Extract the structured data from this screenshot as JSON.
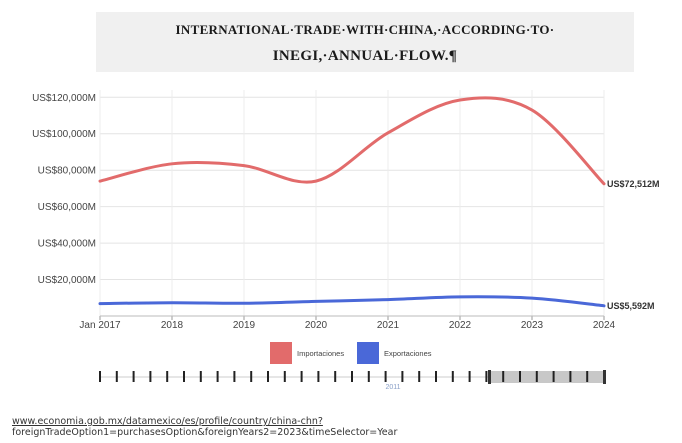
{
  "title": {
    "line1": "INTERNATIONAL·TRADE·WITH·CHINA,·ACCORDING·TO·",
    "line2": "INEGI,·ANNUAL·FLOW.¶"
  },
  "source": {
    "url": "www.economia.gob.mx/datamexico/es/profile/country/china-chn?",
    "query": "foreignTradeOption1=purchasesOption&foreignYears2=2023&timeSelector=Year"
  },
  "slider": {
    "label": "2011"
  },
  "chart_data": {
    "type": "line",
    "x": [
      2017,
      2018,
      2019,
      2020,
      2021,
      2022,
      2023,
      2024
    ],
    "x_tick_labels": [
      "Jan 2017",
      "2018",
      "2019",
      "2020",
      "2021",
      "2022",
      "2023",
      "2024"
    ],
    "y_tick_labels": [
      "US$120,000M",
      "US$100,000M",
      "US$80,000M",
      "US$60,000M",
      "US$40,000M",
      "US$20,000M"
    ],
    "y_ticks": [
      120000,
      100000,
      80000,
      60000,
      40000,
      20000
    ],
    "ylim": [
      0,
      124000
    ],
    "grid": true,
    "legend_position": "bottom",
    "series": [
      {
        "name": "Importaciones",
        "color": "#e26b6b",
        "values": [
          74000,
          83500,
          82500,
          74000,
          100500,
          118500,
          113000,
          72512
        ],
        "end_label": "US$72,512M"
      },
      {
        "name": "Exportaciones",
        "color": "#4a68d8",
        "values": [
          6800,
          7300,
          7000,
          8000,
          9000,
          10500,
          9800,
          5592
        ],
        "end_label": "US$5,592M"
      }
    ]
  }
}
